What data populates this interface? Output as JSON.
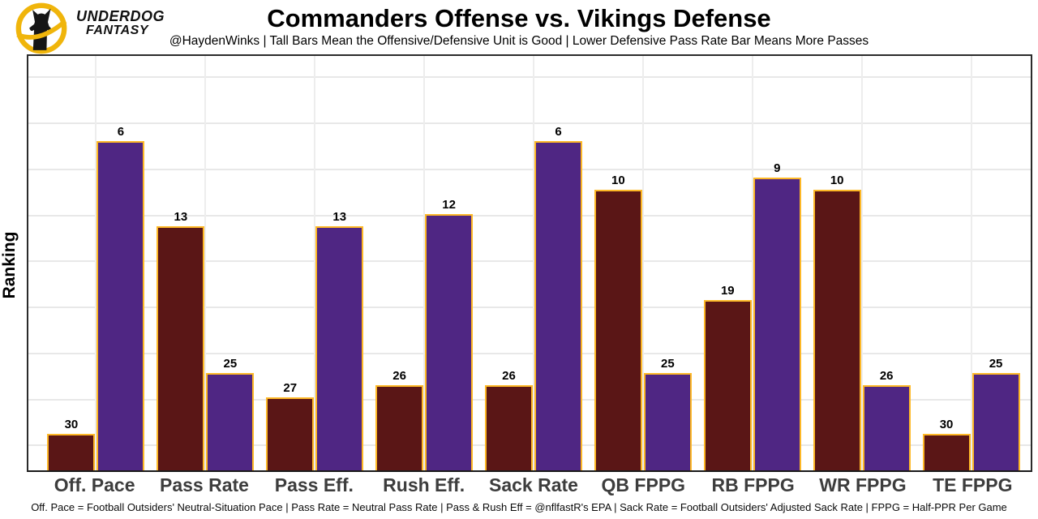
{
  "header": {
    "brand_line1": "UNDERDOG",
    "brand_line2": "FANTASY"
  },
  "chart_data": {
    "type": "bar",
    "title": "Commanders Offense vs. Vikings Defense",
    "subtitle": "@HaydenWinks | Tall Bars Mean the Offensive/Defensive Unit is Good | Lower Defensive Pass Rate Bar Means More Passes",
    "xlabel": "",
    "ylabel": "Ranking",
    "categories": [
      "Off. Pace",
      "Pass Rate",
      "Pass Eff.",
      "Rush Eff.",
      "Sack Rate",
      "QB FPPG",
      "RB FPPG",
      "WR FPPG",
      "TE FPPG"
    ],
    "series": [
      {
        "name": "Commanders Offense",
        "color": "#5A1616",
        "values": [
          30,
          13,
          27,
          26,
          26,
          10,
          19,
          10,
          30
        ]
      },
      {
        "name": "Vikings Defense",
        "color": "#4F2683",
        "values": [
          6,
          25,
          13,
          12,
          6,
          25,
          9,
          26,
          25
        ]
      }
    ],
    "value_encoding": "rank (1 = best of 32); bar height proportional to 33 minus rank",
    "ylim": [
      0,
      34
    ],
    "grid": true,
    "legend_position": "none",
    "bar_edge_color": "#FDB827",
    "accent_gold": "#F0B50B"
  },
  "footer": {
    "text": "Off. Pace = Football Outsiders' Neutral-Situation Pace | Pass Rate = Neutral Pass Rate | Pass & Rush Eff = @nflfastR's EPA | Sack Rate = Football Outsiders' Adjusted Sack Rate | FPPG = Half-PPR Per Game"
  }
}
